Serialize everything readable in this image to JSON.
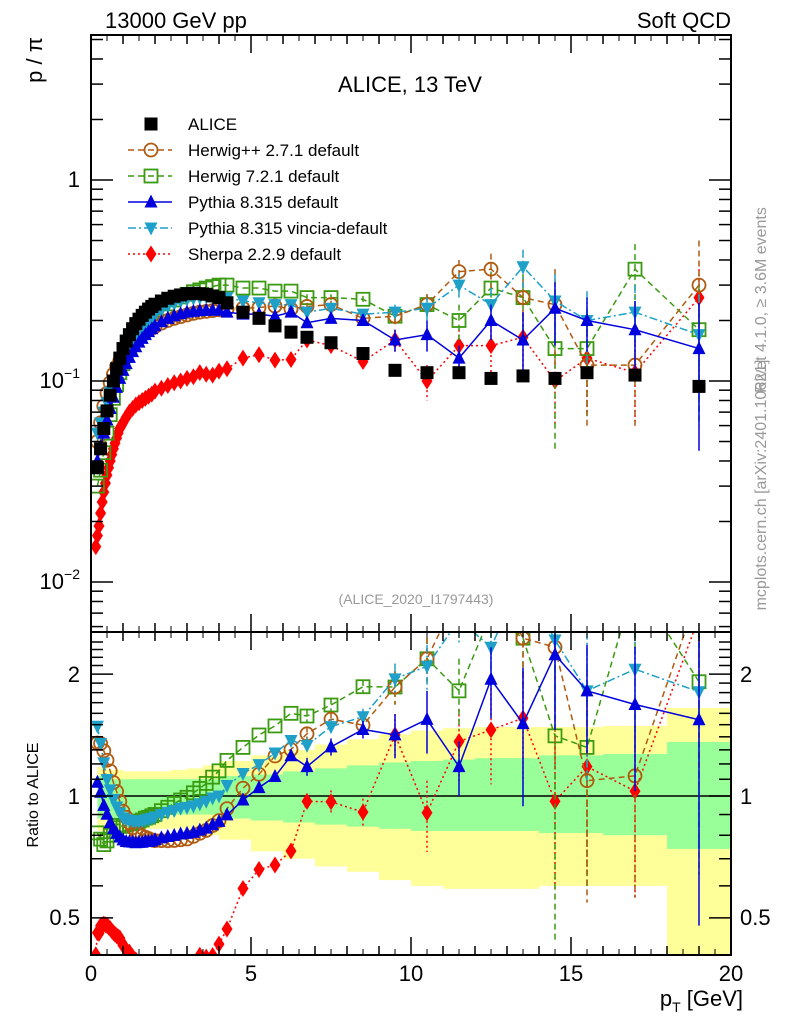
{
  "header": {
    "left": "13000 GeV pp",
    "right": "Soft QCD"
  },
  "side_labels": {
    "rivet": "Rivet 4.1.0, ≥ 3.6M events",
    "mcplots": "mcplots.cern.ch [arXiv:2401.10621]"
  },
  "chart_data": [
    {
      "type": "scatter",
      "panel": "main",
      "title": "ALICE, 13 TeV",
      "analysis_id": "(ALICE_2020_I1797443)",
      "xlabel": "p_T [GeV]",
      "ylabel": "p / π",
      "yscale": "log",
      "xlim": [
        0,
        20
      ],
      "ylim": [
        0.005,
        5
      ],
      "ytick_labels": [
        "10^-2",
        "10^-1",
        "1"
      ],
      "legend_position": "top-left",
      "legend": [
        "ALICE",
        "Herwig++ 2.7.1 default",
        "Herwig 7.2.1 default",
        "Pythia 8.315 default",
        "Pythia 8.315 vincia-default",
        "Sherpa 2.2.9 default"
      ],
      "x": [
        0.2,
        0.3,
        0.4,
        0.5,
        0.6,
        0.7,
        0.8,
        0.9,
        1.0,
        1.1,
        1.2,
        1.3,
        1.4,
        1.5,
        1.6,
        1.7,
        1.8,
        1.9,
        2.0,
        2.2,
        2.4,
        2.6,
        2.8,
        3.0,
        3.2,
        3.4,
        3.6,
        3.8,
        4.0,
        4.5,
        5.0,
        5.5,
        6.0,
        6.5,
        7.0,
        8.0,
        9.0,
        10.0,
        11.0,
        12.0,
        13.0,
        14.0,
        15.0,
        16.0,
        18.0,
        20.0
      ],
      "series": [
        {
          "name": "ALICE",
          "color": "#000000",
          "marker": "square-filled",
          "x": [
            0.2,
            0.3,
            0.4,
            0.5,
            0.6,
            0.7,
            0.8,
            0.9,
            1.0,
            1.1,
            1.2,
            1.3,
            1.4,
            1.5,
            1.6,
            1.7,
            1.8,
            1.9,
            2.0,
            2.2,
            2.4,
            2.6,
            2.8,
            3.0,
            3.2,
            3.4,
            3.6,
            3.8,
            4.0,
            4.25,
            4.75,
            5.25,
            5.75,
            6.25,
            6.75,
            7.5,
            8.5,
            9.5,
            10.5,
            11.5,
            12.5,
            13.5,
            14.5,
            15.5,
            17.0,
            19.0
          ],
          "values": [
            0.037,
            0.046,
            0.058,
            0.071,
            0.085,
            0.1,
            0.115,
            0.13,
            0.145,
            0.158,
            0.17,
            0.182,
            0.193,
            0.203,
            0.212,
            0.22,
            0.228,
            0.235,
            0.241,
            0.25,
            0.258,
            0.264,
            0.268,
            0.272,
            0.273,
            0.272,
            0.27,
            0.265,
            0.26,
            0.245,
            0.22,
            0.205,
            0.188,
            0.175,
            0.165,
            0.155,
            0.137,
            0.113,
            0.11,
            0.11,
            0.103,
            0.106,
            0.103,
            0.11,
            0.107,
            0.094
          ]
        },
        {
          "name": "Herwig++ 2.7.1 default",
          "color": "#b05a10",
          "marker": "circle-open",
          "line": "dashed",
          "x": [
            0.2,
            0.3,
            0.4,
            0.5,
            0.6,
            0.7,
            0.8,
            0.9,
            1.0,
            1.1,
            1.2,
            1.3,
            1.4,
            1.5,
            1.6,
            1.7,
            1.8,
            1.9,
            2.0,
            2.2,
            2.4,
            2.6,
            2.8,
            3.0,
            3.2,
            3.4,
            3.6,
            3.8,
            4.0,
            4.25,
            4.75,
            5.25,
            5.75,
            6.25,
            6.75,
            7.5,
            8.5,
            9.5,
            10.5,
            11.5,
            12.5,
            13.5,
            14.5,
            15.5,
            17.0,
            19.0
          ],
          "values": [
            0.05,
            0.062,
            0.075,
            0.087,
            0.098,
            0.108,
            0.118,
            0.126,
            0.133,
            0.14,
            0.146,
            0.152,
            0.158,
            0.164,
            0.169,
            0.174,
            0.179,
            0.183,
            0.187,
            0.194,
            0.2,
            0.205,
            0.209,
            0.213,
            0.217,
            0.22,
            0.222,
            0.224,
            0.226,
            0.228,
            0.23,
            0.232,
            0.236,
            0.228,
            0.235,
            0.24,
            0.205,
            0.21,
            0.24,
            0.35,
            0.36,
            0.26,
            0.24,
            0.12,
            0.12,
            0.3
          ],
          "errors": [
            0,
            0,
            0,
            0,
            0,
            0,
            0,
            0,
            0,
            0,
            0,
            0,
            0,
            0,
            0,
            0,
            0,
            0,
            0,
            0,
            0,
            0,
            0,
            0,
            0,
            0,
            0,
            0,
            0,
            0,
            0,
            0,
            0,
            0,
            0.01,
            0.01,
            0.01,
            0.02,
            0.03,
            0.05,
            0.07,
            0.06,
            0.12,
            0.06,
            0.06,
            0.2
          ]
        },
        {
          "name": "Herwig 7.2.1 default",
          "color": "#3a9a10",
          "marker": "square-open",
          "line": "dashed",
          "x": [
            0.2,
            0.3,
            0.4,
            0.5,
            0.6,
            0.7,
            0.8,
            0.9,
            1.0,
            1.1,
            1.2,
            1.3,
            1.4,
            1.5,
            1.6,
            1.7,
            1.8,
            1.9,
            2.0,
            2.2,
            2.4,
            2.6,
            2.8,
            3.0,
            3.2,
            3.4,
            3.6,
            3.8,
            4.0,
            4.25,
            4.75,
            5.25,
            5.75,
            6.25,
            6.75,
            7.5,
            8.5,
            9.5,
            10.5,
            11.5,
            12.5,
            13.5,
            14.5,
            15.5,
            17.0,
            19.0
          ],
          "values": [
            0.03,
            0.036,
            0.044,
            0.055,
            0.068,
            0.082,
            0.096,
            0.11,
            0.122,
            0.134,
            0.145,
            0.156,
            0.166,
            0.176,
            0.185,
            0.194,
            0.202,
            0.21,
            0.217,
            0.23,
            0.242,
            0.253,
            0.262,
            0.27,
            0.278,
            0.284,
            0.29,
            0.295,
            0.3,
            0.3,
            0.29,
            0.29,
            0.28,
            0.28,
            0.26,
            0.26,
            0.255,
            0.21,
            0.24,
            0.2,
            0.29,
            0.26,
            0.145,
            0.145,
            0.36,
            0.18
          ],
          "errors": [
            0,
            0,
            0,
            0,
            0,
            0,
            0,
            0,
            0,
            0,
            0,
            0,
            0,
            0,
            0,
            0,
            0,
            0,
            0,
            0,
            0,
            0,
            0,
            0,
            0,
            0,
            0,
            0,
            0,
            0,
            0,
            0,
            0,
            0,
            0.01,
            0.01,
            0.01,
            0.02,
            0.03,
            0.04,
            0.06,
            0.08,
            0.1,
            0.08,
            0.12,
            0.12
          ]
        },
        {
          "name": "Pythia 8.315 default",
          "color": "#0000dd",
          "marker": "triangle-up-filled",
          "line": "solid",
          "x": [
            0.2,
            0.3,
            0.4,
            0.5,
            0.6,
            0.7,
            0.8,
            0.9,
            1.0,
            1.1,
            1.2,
            1.3,
            1.4,
            1.5,
            1.6,
            1.7,
            1.8,
            1.9,
            2.0,
            2.2,
            2.4,
            2.6,
            2.8,
            3.0,
            3.2,
            3.4,
            3.6,
            3.8,
            4.0,
            4.25,
            4.75,
            5.25,
            5.75,
            6.25,
            6.75,
            7.5,
            8.5,
            9.5,
            10.5,
            11.5,
            12.5,
            13.5,
            14.5,
            15.5,
            17.0,
            19.0
          ],
          "values": [
            0.04,
            0.047,
            0.055,
            0.064,
            0.073,
            0.083,
            0.093,
            0.103,
            0.113,
            0.122,
            0.131,
            0.14,
            0.148,
            0.156,
            0.163,
            0.17,
            0.176,
            0.182,
            0.188,
            0.197,
            0.205,
            0.211,
            0.216,
            0.22,
            0.222,
            0.224,
            0.225,
            0.225,
            0.225,
            0.22,
            0.215,
            0.215,
            0.21,
            0.22,
            0.195,
            0.205,
            0.2,
            0.16,
            0.17,
            0.13,
            0.2,
            0.16,
            0.23,
            0.2,
            0.18,
            0.145
          ],
          "errors": [
            0,
            0,
            0,
            0,
            0,
            0,
            0,
            0,
            0,
            0,
            0,
            0,
            0,
            0,
            0,
            0,
            0,
            0,
            0,
            0,
            0,
            0,
            0,
            0,
            0,
            0,
            0,
            0,
            0,
            0,
            0,
            0,
            0,
            0,
            0.01,
            0.01,
            0.01,
            0.02,
            0.03,
            0.02,
            0.04,
            0.06,
            0.08,
            0.06,
            0.07,
            0.1
          ]
        },
        {
          "name": "Pythia 8.315 vincia-default",
          "color": "#1ea0c8",
          "marker": "triangle-down-filled",
          "line": "dashdot",
          "x": [
            0.2,
            0.3,
            0.4,
            0.5,
            0.6,
            0.7,
            0.8,
            0.9,
            1.0,
            1.1,
            1.2,
            1.3,
            1.4,
            1.5,
            1.6,
            1.7,
            1.8,
            1.9,
            2.0,
            2.2,
            2.4,
            2.6,
            2.8,
            3.0,
            3.2,
            3.4,
            3.6,
            3.8,
            4.0,
            4.25,
            4.75,
            5.25,
            5.75,
            6.25,
            6.75,
            7.5,
            8.5,
            9.5,
            10.5,
            11.5,
            12.5,
            13.5,
            14.5,
            15.5,
            17.0,
            19.0
          ],
          "values": [
            0.055,
            0.062,
            0.07,
            0.078,
            0.088,
            0.098,
            0.108,
            0.118,
            0.128,
            0.138,
            0.148,
            0.158,
            0.167,
            0.176,
            0.184,
            0.192,
            0.2,
            0.207,
            0.214,
            0.225,
            0.235,
            0.243,
            0.25,
            0.255,
            0.258,
            0.26,
            0.262,
            0.262,
            0.26,
            0.26,
            0.25,
            0.245,
            0.24,
            0.24,
            0.22,
            0.23,
            0.215,
            0.22,
            0.23,
            0.3,
            0.24,
            0.37,
            0.25,
            0.2,
            0.22,
            0.17
          ],
          "errors": [
            0,
            0,
            0,
            0,
            0,
            0,
            0,
            0,
            0,
            0,
            0,
            0,
            0,
            0,
            0,
            0,
            0,
            0,
            0,
            0,
            0,
            0,
            0,
            0,
            0,
            0,
            0,
            0,
            0,
            0,
            0,
            0,
            0,
            0,
            0.01,
            0.01,
            0.01,
            0.02,
            0.03,
            0.04,
            0.05,
            0.08,
            0.09,
            0.08,
            0.08,
            0.1
          ]
        },
        {
          "name": "Sherpa 2.2.9 default",
          "color": "#ff0000",
          "marker": "diamond-filled",
          "line": "dotted",
          "x": [
            0.15,
            0.2,
            0.25,
            0.3,
            0.35,
            0.4,
            0.45,
            0.5,
            0.55,
            0.6,
            0.65,
            0.7,
            0.75,
            0.8,
            0.85,
            0.9,
            0.95,
            1.0,
            1.1,
            1.2,
            1.3,
            1.4,
            1.5,
            1.6,
            1.7,
            1.8,
            1.9,
            2.0,
            2.2,
            2.4,
            2.6,
            2.8,
            3.0,
            3.2,
            3.4,
            3.6,
            3.8,
            4.0,
            4.25,
            4.75,
            5.25,
            5.75,
            6.25,
            6.75,
            7.5,
            8.5,
            9.5,
            10.5,
            11.5,
            12.5,
            13.5,
            14.5,
            15.5,
            17.0,
            19.0
          ],
          "values": [
            0.015,
            0.017,
            0.019,
            0.022,
            0.025,
            0.028,
            0.031,
            0.034,
            0.037,
            0.04,
            0.043,
            0.046,
            0.049,
            0.052,
            0.055,
            0.058,
            0.06,
            0.062,
            0.066,
            0.07,
            0.073,
            0.076,
            0.078,
            0.08,
            0.082,
            0.084,
            0.086,
            0.089,
            0.092,
            0.095,
            0.098,
            0.1,
            0.103,
            0.105,
            0.11,
            0.108,
            0.107,
            0.112,
            0.115,
            0.13,
            0.135,
            0.127,
            0.128,
            0.16,
            0.15,
            0.125,
            0.16,
            0.1,
            0.15,
            0.15,
            0.165,
            0.1,
            0.13,
            0.11,
            0.26
          ],
          "errors": [
            0,
            0,
            0,
            0,
            0,
            0,
            0,
            0,
            0,
            0,
            0,
            0,
            0,
            0,
            0,
            0,
            0,
            0,
            0,
            0,
            0,
            0,
            0,
            0,
            0,
            0,
            0,
            0,
            0,
            0,
            0,
            0,
            0,
            0,
            0,
            0,
            0,
            0,
            0,
            0,
            0,
            0,
            0,
            0.005,
            0.01,
            0.01,
            0.02,
            0.02,
            0.03,
            0.04,
            0.05,
            0.04,
            0.06,
            0.05,
            0.1
          ]
        }
      ]
    },
    {
      "type": "scatter",
      "panel": "ratio",
      "xlabel": "p_T [GeV]",
      "ylabel": "Ratio to ALICE",
      "yscale": "log",
      "xlim": [
        0,
        20
      ],
      "ylim": [
        0.38,
        2.5
      ],
      "ytick_labels": [
        "0.5",
        "1",
        "2"
      ],
      "xtick_labels": [
        "0",
        "5",
        "10",
        "15",
        "20"
      ],
      "reference_line": 1,
      "bands": {
        "edges": [
          0.2,
          0.5,
          1.0,
          1.5,
          2.0,
          2.5,
          3.0,
          3.5,
          4.0,
          5.0,
          6.0,
          7.0,
          8.0,
          9.0,
          10.0,
          11.0,
          12.0,
          14.0,
          16.0,
          18.0,
          20.0
        ],
        "inner_lo": [
          0.88,
          0.88,
          0.9,
          0.9,
          0.9,
          0.9,
          0.9,
          0.9,
          0.88,
          0.87,
          0.86,
          0.85,
          0.84,
          0.83,
          0.82,
          0.82,
          0.82,
          0.81,
          0.8,
          0.74
        ],
        "inner_hi": [
          1.12,
          1.1,
          1.1,
          1.1,
          1.1,
          1.1,
          1.1,
          1.1,
          1.12,
          1.13,
          1.15,
          1.17,
          1.19,
          1.21,
          1.22,
          1.23,
          1.24,
          1.26,
          1.27,
          1.36
        ],
        "outer_lo": [
          0.82,
          0.83,
          0.83,
          0.83,
          0.83,
          0.83,
          0.82,
          0.8,
          0.78,
          0.73,
          0.7,
          0.67,
          0.65,
          0.62,
          0.6,
          0.59,
          0.59,
          0.6,
          0.6,
          0.38
        ],
        "outer_hi": [
          1.18,
          1.16,
          1.15,
          1.15,
          1.15,
          1.16,
          1.17,
          1.19,
          1.22,
          1.26,
          1.3,
          1.34,
          1.38,
          1.42,
          1.45,
          1.47,
          1.48,
          1.48,
          1.49,
          1.65
        ]
      },
      "series_note": "ratio of each MC series to ALICE values"
    }
  ]
}
